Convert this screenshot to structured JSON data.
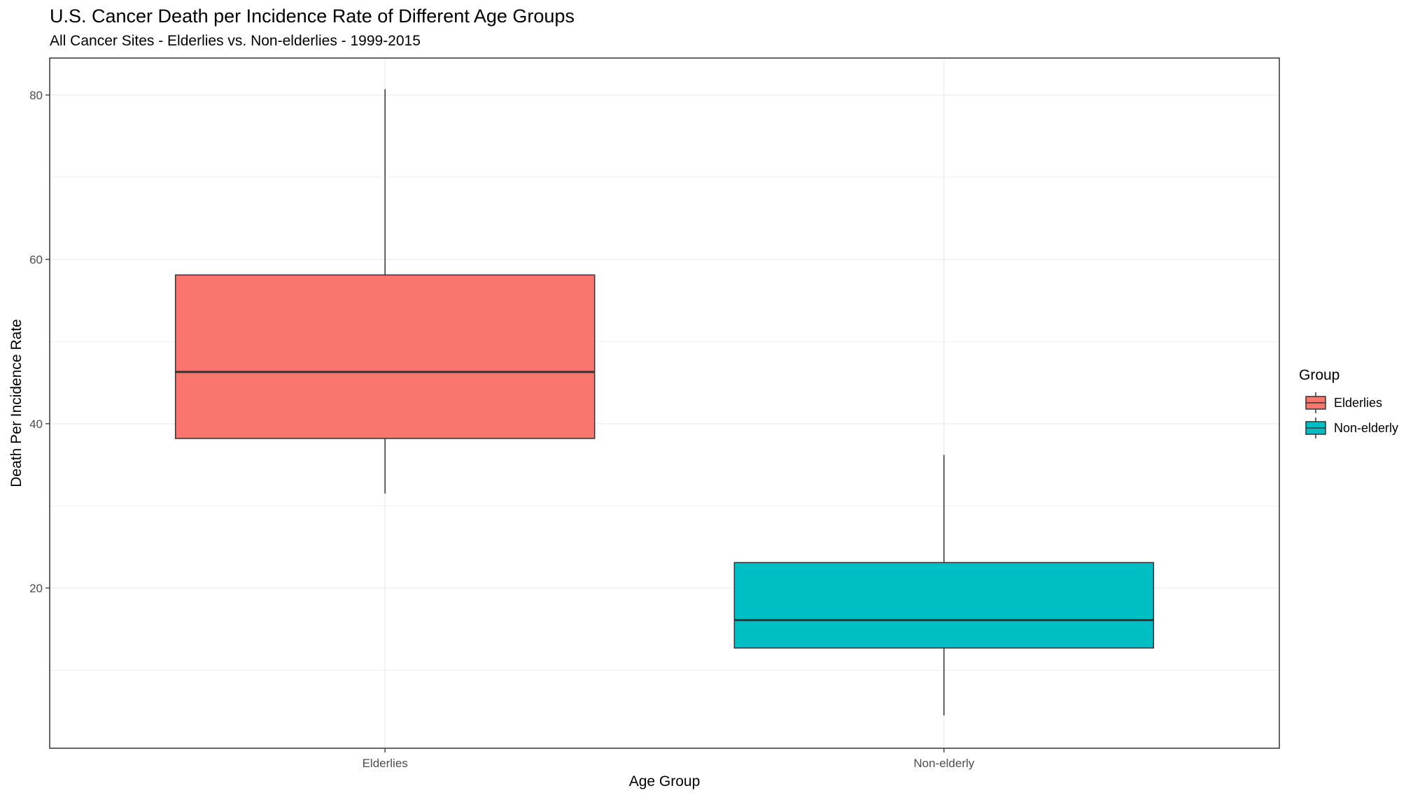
{
  "chart_data": {
    "type": "boxplot",
    "title": "U.S. Cancer Death per Incidence Rate of Different Age Groups",
    "subtitle": "All Cancer Sites - Elderlies vs. Non-elderlies - 1999-2015",
    "xlabel": "Age Group",
    "ylabel": "Death Per Incidence Rate",
    "categories": [
      "Elderlies",
      "Non-elderly"
    ],
    "ylim": [
      0.5,
      84.5
    ],
    "yticks": [
      20,
      40,
      60,
      80
    ],
    "grid": true,
    "legend": {
      "title": "Group",
      "position": "right",
      "entries": [
        "Elderlies",
        "Non-elderly"
      ]
    },
    "series": [
      {
        "name": "Elderlies",
        "color": "#F8766D",
        "min": 31.5,
        "q1": 38.2,
        "median": 46.3,
        "q3": 58.1,
        "max": 80.7
      },
      {
        "name": "Non-elderly",
        "color": "#00BFC4",
        "min": 4.5,
        "q1": 12.7,
        "median": 16.1,
        "q3": 23.1,
        "max": 36.2
      }
    ]
  }
}
